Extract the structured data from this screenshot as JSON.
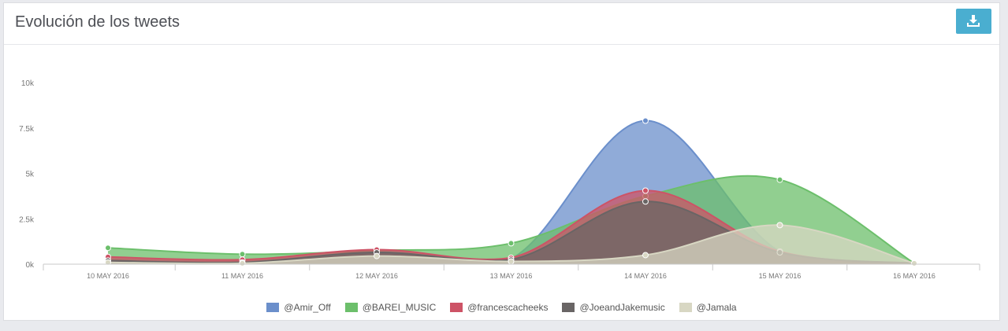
{
  "page": {
    "title": "Evolución de los tweets",
    "download_icon": "download-icon",
    "download_color": "#4aaed0"
  },
  "chart_data": {
    "type": "area",
    "title": "Evolución de los tweets",
    "xlabel": "",
    "ylabel": "",
    "categories": [
      "10 MAY 2016",
      "11 MAY 2016",
      "12 MAY 2016",
      "13 MAY 2016",
      "14 MAY 2016",
      "15 MAY 2016",
      "16 MAY 2016"
    ],
    "ylim": [
      0,
      10000
    ],
    "yticks": [
      0,
      2500,
      5000,
      7500,
      10000
    ],
    "ytick_labels": [
      "0k",
      "2.5k",
      "5k",
      "7.5k",
      "10k"
    ],
    "grid": false,
    "legend_position": "bottom",
    "series": [
      {
        "name": "@Amir_Off",
        "color": "#6b8fcb",
        "values": [
          250,
          150,
          650,
          300,
          7900,
          700,
          50
        ]
      },
      {
        "name": "@BAREI_MUSIC",
        "color": "#6cbf6b",
        "values": [
          900,
          550,
          750,
          1150,
          3750,
          4650,
          50
        ]
      },
      {
        "name": "@francescacheeks",
        "color": "#cd5366",
        "values": [
          400,
          250,
          800,
          350,
          4050,
          700,
          50
        ]
      },
      {
        "name": "@JoeandJakemusic",
        "color": "#696565",
        "values": [
          200,
          100,
          650,
          250,
          3450,
          650,
          50
        ]
      },
      {
        "name": "@Jamala",
        "color": "#d8d7c3",
        "values": [
          100,
          50,
          450,
          150,
          500,
          2150,
          50
        ]
      }
    ]
  }
}
